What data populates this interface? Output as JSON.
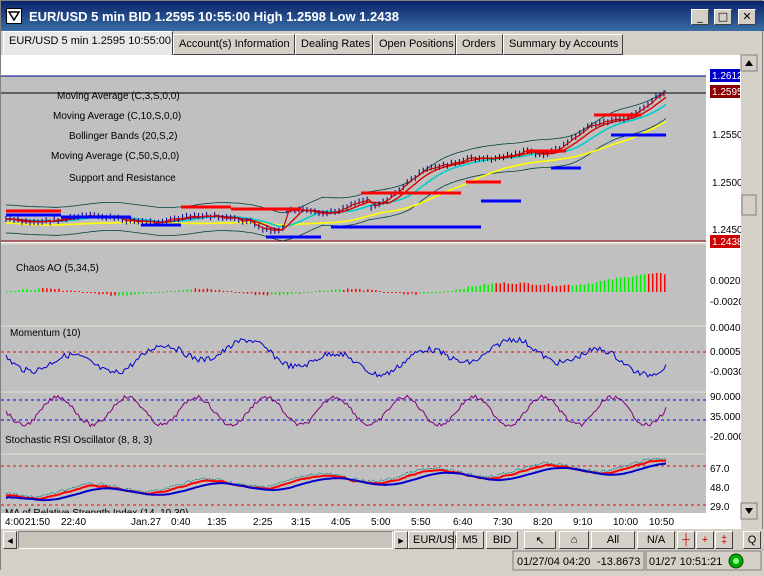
{
  "window": {
    "title": "EUR/USD 5 min BID 1.2595 10:55:00 High 1.2598 Low 1.2438",
    "minimize": "_",
    "maximize": "□",
    "close": "✕"
  },
  "tabs": [
    {
      "label": "EUR/USD 5 min 1.2595 10:55:00",
      "active": true
    },
    {
      "label": "Account(s) Information"
    },
    {
      "label": "Dealing Rates"
    },
    {
      "label": "Open Positions"
    },
    {
      "label": "Orders"
    },
    {
      "label": "Summary by Accounts"
    }
  ],
  "price_panel": {
    "legend": [
      "Moving Average (C,3,S,0,0)",
      "Moving Average (C,10,S,0,0)",
      "Bollinger Bands (20,S,2)",
      "Moving Average (C,50,S,0,0)",
      "Support and Resistance"
    ],
    "y_ticks": [
      "1.2612",
      "1.2595",
      "1.2550",
      "1.2500",
      "1.2450",
      "1.2438"
    ],
    "high_label": "1.2612",
    "last_label": "1.2595",
    "low_label": "1.2438"
  },
  "indicators": {
    "chaos": {
      "label": "Chaos AO (5,34,5)",
      "ticks": [
        "0.0020",
        "-0.0020"
      ]
    },
    "momentum": {
      "label": "Momentum (10)",
      "ticks": [
        "0.0040",
        "0.0005",
        "-0.0030"
      ]
    },
    "stoch_rsi": {
      "label": "Stochastic RSI Oscillator (8, 8, 3)",
      "ticks": [
        "90.000",
        "35.000",
        "-20.000"
      ]
    },
    "ma_rsi": {
      "label": "MA of Relative Strength Index (14, 10,30)",
      "ticks": [
        "67.0",
        "48.0",
        "29.0"
      ]
    }
  },
  "x_axis": [
    "4:00",
    "21:50",
    "22:40",
    "Jan.27",
    "0:40",
    "1:35",
    "2:25",
    "3:15",
    "4:05",
    "5:00",
    "5:50",
    "6:40",
    "7:30",
    "8:20",
    "9:10",
    "10:00",
    "10:50"
  ],
  "bottom_bar": {
    "symbol": "EUR/USD",
    "timeframe": "M5",
    "side": "BID",
    "range": "All",
    "na": "N/A",
    "q": "Q"
  },
  "status": {
    "cursor_time": "01/27/04 04:20",
    "cursor_value": "-13.8673",
    "clock": "01/27 10:51:21"
  },
  "colors": {
    "chart_bg": "#c0c0c0",
    "ma3": "#ff0000",
    "ma10": "#dd0000",
    "ma50": "#ffff00",
    "bands": "#00cccc",
    "resistance": "#ff0000",
    "support": "#0000ff",
    "ao_up": "#00ee00",
    "ao_down": "#ff0000"
  }
}
